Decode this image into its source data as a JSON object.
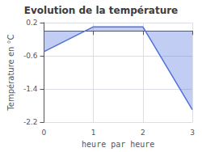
{
  "chart_data": {
    "type": "area",
    "title": "Evolution de la température",
    "xlabel": "heure par heure",
    "ylabel": "Température en °C",
    "x": [
      0,
      1,
      2,
      3
    ],
    "values": [
      -0.5,
      0.1,
      0.1,
      -1.9
    ],
    "baseline": 0,
    "xlim": [
      0,
      3
    ],
    "ylim": [
      -2.2,
      0.2
    ],
    "xticks": [
      0,
      1,
      2,
      3
    ],
    "yticks": [
      0.2,
      -0.6,
      -1.4,
      -2.2
    ],
    "grid": true
  }
}
